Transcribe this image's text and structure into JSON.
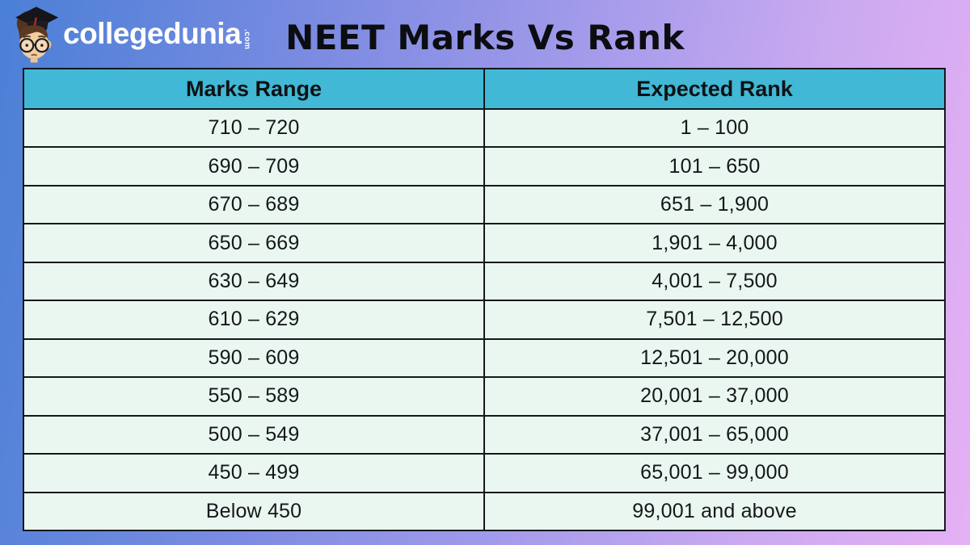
{
  "page": {
    "title": "NEET Marks Vs Rank"
  },
  "logo": {
    "brand": "collegedunia",
    "tld": ".com",
    "mascot": "collegedunia-mascot-icon"
  },
  "chart_data": {
    "type": "table",
    "title": "NEET Marks Vs Rank",
    "columns": [
      "Marks Range",
      "Expected Rank"
    ],
    "rows": [
      [
        "710 – 720",
        "1 – 100"
      ],
      [
        "690 – 709",
        "101 – 650"
      ],
      [
        "670 – 689",
        "651 – 1,900"
      ],
      [
        "650 – 669",
        "1,901 – 4,000"
      ],
      [
        "630 – 649",
        "4,001 – 7,500"
      ],
      [
        "610 – 629",
        "7,501 – 12,500"
      ],
      [
        "590 – 609",
        "12,501 – 20,000"
      ],
      [
        "550 – 589",
        "20,001 – 37,000"
      ],
      [
        "500 – 549",
        "37,001 – 65,000"
      ],
      [
        "450 – 499",
        "65,001 – 99,000"
      ],
      [
        "Below 450",
        "99,001 and above"
      ]
    ]
  },
  "colors": {
    "header_bg": "#41b8d5",
    "row_bg": "#eaf7f0",
    "table_border": "#14181c",
    "background_gradient": [
      "#4a80d6",
      "#7d8ce2",
      "#c9a9f0",
      "#e6b0f4"
    ],
    "brand_text": "#ffffff",
    "title_text": "#0c0d10"
  }
}
